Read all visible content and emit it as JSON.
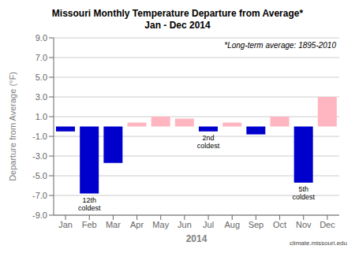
{
  "chart_data": {
    "type": "bar",
    "title": "Missouri Monthly Temperature Departure from Average*",
    "subtitle": "Jan - Dec 2014",
    "categories": [
      "Jan",
      "Feb",
      "Mar",
      "Apr",
      "May",
      "Jun",
      "Jul",
      "Aug",
      "Sep",
      "Oct",
      "Nov",
      "Dec"
    ],
    "values": [
      -0.5,
      -6.8,
      -3.7,
      0.4,
      1.0,
      0.8,
      -0.5,
      0.4,
      -0.8,
      1.0,
      -5.7,
      3.0
    ],
    "colors": [
      "#0000CD",
      "#0000CD",
      "#0000CD",
      "#FFB6C1",
      "#FFB6C1",
      "#FFB6C1",
      "#0000CD",
      "#FFB6C1",
      "#0000CD",
      "#FFB6C1",
      "#0000CD",
      "#FFB6C1"
    ],
    "ylabel": "Departure from Average (°F)",
    "xlabel": "2014",
    "ylim": [
      -9.0,
      9.0
    ],
    "yticks": [
      {
        "value": -9.0,
        "label": "-9.0"
      },
      {
        "value": -7.0,
        "label": "-7.0"
      },
      {
        "value": -5.0,
        "label": "-5.0"
      },
      {
        "value": -3.0,
        "label": "-3.0"
      },
      {
        "value": -1.0,
        "label": "-1.0"
      },
      {
        "value": 1.0,
        "label": "1.0"
      },
      {
        "value": 3.0,
        "label": "3.0"
      },
      {
        "value": 5.0,
        "label": "5.0"
      },
      {
        "value": 7.0,
        "label": "7.0"
      },
      {
        "value": 9.0,
        "label": "9.0"
      }
    ],
    "grid": true,
    "annotations": [
      {
        "category": "Feb",
        "text": "12th\ncoldest"
      },
      {
        "category": "Jul",
        "text": "2nd\ncoldest"
      },
      {
        "category": "Nov",
        "text": "5th\ncoldest"
      }
    ],
    "note": "*Long-term average: 1895-2010",
    "watermark": "climate.missouri.edu"
  }
}
